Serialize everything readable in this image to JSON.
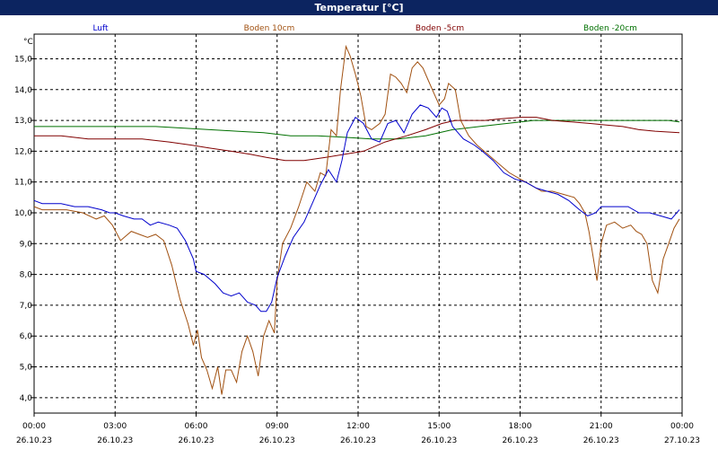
{
  "window": {
    "title": "Temperatur [°C]"
  },
  "chart_data": {
    "type": "line",
    "title": "Temperatur [°C]",
    "ylabel": "°C",
    "xlabel": "",
    "ylim": [
      3.5,
      15.8
    ],
    "xlim": [
      0,
      24
    ],
    "grid": true,
    "legend_placement": "top",
    "y_ticks": [
      {
        "value": 4.0,
        "label": "4,0"
      },
      {
        "value": 5.0,
        "label": "5,0"
      },
      {
        "value": 6.0,
        "label": "6,0"
      },
      {
        "value": 7.0,
        "label": "7,0"
      },
      {
        "value": 8.0,
        "label": "8,0"
      },
      {
        "value": 9.0,
        "label": "9,0"
      },
      {
        "value": 10.0,
        "label": "10,0"
      },
      {
        "value": 11.0,
        "label": "11,0"
      },
      {
        "value": 12.0,
        "label": "12,0"
      },
      {
        "value": 13.0,
        "label": "13,0"
      },
      {
        "value": 14.0,
        "label": "14,0"
      },
      {
        "value": 15.0,
        "label": "15,0"
      }
    ],
    "x_ticks": [
      {
        "hour": 0,
        "time": "00:00",
        "date": "26.10.23"
      },
      {
        "hour": 3,
        "time": "03:00",
        "date": "26.10.23"
      },
      {
        "hour": 6,
        "time": "06:00",
        "date": "26.10.23"
      },
      {
        "hour": 9,
        "time": "09:00",
        "date": "26.10.23"
      },
      {
        "hour": 12,
        "time": "12:00",
        "date": "26.10.23"
      },
      {
        "hour": 15,
        "time": "15:00",
        "date": "26.10.23"
      },
      {
        "hour": 18,
        "time": "18:00",
        "date": "26.10.23"
      },
      {
        "hour": 21,
        "time": "21:00",
        "date": "26.10.23"
      },
      {
        "hour": 24,
        "time": "00:00",
        "date": "27.10.23"
      }
    ],
    "series": [
      {
        "name": "Luft",
        "color": "#0000cc",
        "x": [
          0,
          0.3,
          1,
          1.5,
          2,
          2.5,
          2.8,
          3,
          3.3,
          3.7,
          4,
          4.3,
          4.6,
          5,
          5.3,
          5.6,
          5.9,
          6,
          6.3,
          6.7,
          7,
          7.3,
          7.6,
          7.9,
          8.2,
          8.4,
          8.6,
          8.8,
          9,
          9.3,
          9.6,
          10,
          10.3,
          10.6,
          10.9,
          11.2,
          11.4,
          11.6,
          11.9,
          12.2,
          12.5,
          12.8,
          13.1,
          13.4,
          13.7,
          14,
          14.3,
          14.6,
          14.9,
          15.1,
          15.3,
          15.5,
          15.7,
          15.9,
          16.3,
          16.6,
          17,
          17.4,
          17.8,
          18.2,
          18.6,
          19,
          19.4,
          19.8,
          20.2,
          20.5,
          20.8,
          21,
          21.3,
          21.6,
          22,
          22.4,
          22.8,
          23.2,
          23.6,
          23.9
        ],
        "y": [
          10.4,
          10.3,
          10.3,
          10.2,
          10.2,
          10.1,
          10.0,
          10.0,
          9.9,
          9.8,
          9.8,
          9.6,
          9.7,
          9.6,
          9.5,
          9.1,
          8.5,
          8.1,
          8.0,
          7.7,
          7.4,
          7.3,
          7.4,
          7.1,
          7.0,
          6.8,
          6.8,
          7.1,
          7.9,
          8.6,
          9.2,
          9.7,
          10.3,
          10.9,
          11.4,
          11.0,
          11.7,
          12.6,
          13.1,
          12.9,
          12.4,
          12.3,
          12.9,
          13.0,
          12.6,
          13.2,
          13.5,
          13.4,
          13.1,
          13.4,
          13.3,
          12.8,
          12.6,
          12.4,
          12.2,
          12.0,
          11.7,
          11.3,
          11.1,
          11.0,
          10.8,
          10.7,
          10.6,
          10.4,
          10.1,
          9.9,
          10.0,
          10.2,
          10.2,
          10.2,
          10.2,
          10.0,
          10.0,
          9.9,
          9.8,
          10.1
        ]
      },
      {
        "name": "Boden 10cm",
        "color": "#a05010",
        "x": [
          0,
          0.3,
          0.7,
          1.2,
          1.8,
          2.3,
          2.6,
          2.9,
          3.2,
          3.6,
          3.9,
          4.2,
          4.5,
          4.8,
          5.1,
          5.4,
          5.7,
          5.9,
          6.05,
          6.2,
          6.4,
          6.6,
          6.8,
          6.95,
          7.1,
          7.3,
          7.5,
          7.7,
          7.9,
          8.1,
          8.3,
          8.5,
          8.7,
          8.9,
          9.0,
          9.2,
          9.5,
          9.8,
          10.1,
          10.4,
          10.6,
          10.8,
          11.0,
          11.2,
          11.35,
          11.55,
          11.7,
          11.9,
          12.1,
          12.3,
          12.5,
          12.8,
          13.0,
          13.2,
          13.4,
          13.6,
          13.8,
          14.0,
          14.2,
          14.4,
          14.6,
          14.8,
          15.0,
          15.2,
          15.35,
          15.6,
          15.8,
          16.1,
          16.4,
          16.8,
          17.2,
          17.6,
          18.0,
          18.4,
          18.8,
          19.2,
          19.6,
          20.0,
          20.2,
          20.4,
          20.55,
          20.7,
          20.85,
          21.0,
          21.2,
          21.5,
          21.8,
          22.1,
          22.3,
          22.5,
          22.7,
          22.9,
          23.1,
          23.3,
          23.5,
          23.7,
          23.9
        ],
        "y": [
          10.2,
          10.1,
          10.1,
          10.1,
          10.0,
          9.8,
          9.9,
          9.6,
          9.1,
          9.4,
          9.3,
          9.2,
          9.3,
          9.1,
          8.3,
          7.2,
          6.4,
          5.7,
          6.2,
          5.3,
          4.9,
          4.3,
          5.0,
          4.1,
          4.9,
          4.9,
          4.5,
          5.5,
          6.0,
          5.5,
          4.7,
          6.0,
          6.5,
          6.1,
          7.8,
          9.0,
          9.5,
          10.2,
          11.0,
          10.7,
          11.3,
          11.2,
          12.7,
          12.5,
          14.0,
          15.4,
          15.1,
          14.5,
          13.8,
          12.8,
          12.7,
          12.9,
          13.2,
          14.5,
          14.4,
          14.2,
          13.9,
          14.7,
          14.9,
          14.7,
          14.3,
          13.9,
          13.5,
          13.7,
          14.2,
          14.0,
          13.0,
          12.5,
          12.2,
          11.9,
          11.6,
          11.3,
          11.1,
          10.9,
          10.7,
          10.7,
          10.6,
          10.5,
          10.3,
          10.0,
          9.4,
          8.6,
          7.8,
          9.0,
          9.6,
          9.7,
          9.5,
          9.6,
          9.4,
          9.3,
          9.0,
          7.8,
          7.4,
          8.5,
          9.0,
          9.5,
          9.8
        ]
      },
      {
        "name": "Boden -5cm",
        "color": "#800000",
        "x": [
          0,
          1,
          2,
          3,
          4,
          5,
          5.8,
          6.5,
          7.3,
          8,
          8.6,
          9.3,
          10,
          10.8,
          11.5,
          12.2,
          13,
          13.8,
          14.5,
          15.1,
          15.6,
          16.1,
          16.7,
          17.3,
          18,
          18.6,
          19.2,
          19.9,
          20.6,
          21.2,
          21.8,
          22.4,
          23,
          23.9
        ],
        "y": [
          12.5,
          12.5,
          12.4,
          12.4,
          12.4,
          12.3,
          12.2,
          12.1,
          12.0,
          11.9,
          11.8,
          11.7,
          11.7,
          11.8,
          11.9,
          12.0,
          12.3,
          12.5,
          12.7,
          12.9,
          13.0,
          13.0,
          13.0,
          13.05,
          13.1,
          13.1,
          13.0,
          12.95,
          12.9,
          12.85,
          12.8,
          12.7,
          12.65,
          12.6
        ]
      },
      {
        "name": "Boden -20cm",
        "color": "#007000",
        "x": [
          0,
          1.5,
          3,
          4.5,
          5.5,
          6.5,
          7.5,
          8.5,
          9.5,
          10.5,
          11.5,
          12.5,
          13.5,
          14.5,
          15.5,
          16.5,
          17.5,
          18.5,
          19.5,
          20.5,
          21.5,
          22.5,
          23.5,
          23.9
        ],
        "y": [
          12.8,
          12.8,
          12.8,
          12.8,
          12.75,
          12.7,
          12.65,
          12.6,
          12.5,
          12.5,
          12.45,
          12.4,
          12.4,
          12.5,
          12.7,
          12.8,
          12.9,
          13.0,
          13.0,
          13.0,
          13.0,
          13.0,
          13.0,
          12.95
        ]
      }
    ]
  }
}
